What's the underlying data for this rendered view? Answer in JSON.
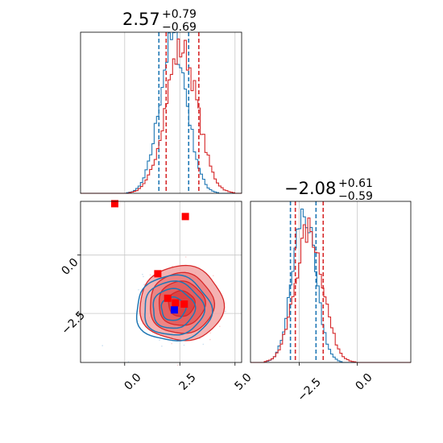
{
  "chart_data": [
    {
      "type": "histogram",
      "panel": "param-1-marginal",
      "title": {
        "value": "2.57",
        "upper": "+0.79",
        "lower": "−0.69"
      },
      "xlim": [
        -2.0,
        5.3
      ],
      "grid": true,
      "series": [
        {
          "name": "",
          "color": "#1f77b4",
          "center": 2.2,
          "sigma": 0.62,
          "amp": 0.95,
          "quantiles": [
            1.55,
            2.9
          ]
        },
        {
          "name": "",
          "color": "#d62728",
          "center": 2.57,
          "sigma": 0.72,
          "amp": 0.9,
          "quantiles": [
            1.88,
            3.36
          ]
        }
      ]
    },
    {
      "type": "histogram",
      "panel": "param-2-marginal",
      "title": {
        "value": "−2.08",
        "upper": "+0.61",
        "lower": "−0.59"
      },
      "xlim": [
        -4.6,
        2.3
      ],
      "grid": true,
      "series": [
        {
          "name": "",
          "color": "#1f77b4",
          "center": -2.3,
          "sigma": 0.5,
          "amp": 0.92,
          "quantiles": [
            -2.88,
            -1.78
          ]
        },
        {
          "name": "",
          "color": "#d62728",
          "center": -2.08,
          "sigma": 0.6,
          "amp": 0.82,
          "quantiles": [
            -2.67,
            -1.47
          ]
        }
      ]
    },
    {
      "type": "scatter",
      "panel": "joint-2d",
      "xlim": [
        -2.0,
        5.3
      ],
      "ylim": [
        -4.6,
        2.3
      ],
      "grid": true,
      "xticks": [
        "0.0",
        "2.5",
        "5.0"
      ],
      "xtick_values": [
        0.0,
        2.5,
        5.0
      ],
      "yticks": [
        "0.0",
        "−2.5"
      ],
      "ytick_values": [
        0.0,
        -2.5
      ],
      "red_markers": [
        {
          "x": -0.45,
          "y": 2.2
        },
        {
          "x": 2.75,
          "y": 1.65
        },
        {
          "x": 1.5,
          "y": -0.8
        },
        {
          "x": 1.95,
          "y": -1.85
        },
        {
          "x": 2.3,
          "y": -2.05
        },
        {
          "x": 2.7,
          "y": -2.1
        }
      ],
      "blue_marker": {
        "x": 2.25,
        "y": -2.35
      },
      "contours": [
        {
          "color": "#d62728",
          "center": [
            2.57,
            -2.08
          ],
          "radii": [
            [
              0.6,
              0.55
            ],
            [
              1.05,
              0.95
            ],
            [
              1.45,
              1.3
            ],
            [
              1.9,
              1.6
            ]
          ]
        },
        {
          "color": "#1f77b4",
          "center": [
            2.2,
            -2.3
          ],
          "radii": [
            [
              0.55,
              0.5
            ],
            [
              0.95,
              0.85
            ],
            [
              1.35,
              1.15
            ],
            [
              1.7,
              1.4
            ]
          ]
        }
      ]
    }
  ]
}
